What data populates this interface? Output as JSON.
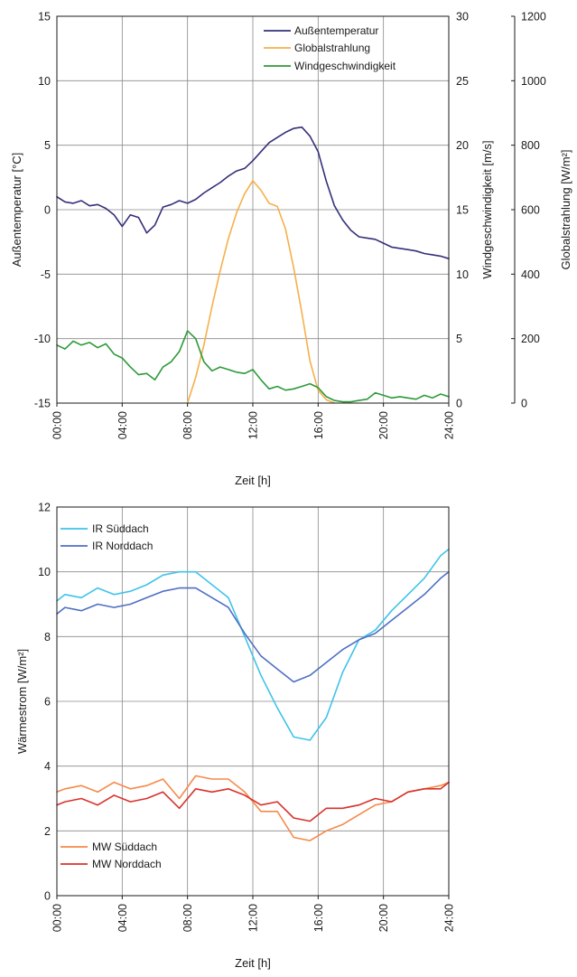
{
  "chart_data": [
    {
      "type": "line",
      "xlabel": "Zeit [h]",
      "x_ticks": [
        "00:00",
        "04:00",
        "08:00",
        "12:00",
        "16:00",
        "20:00",
        "24:00"
      ],
      "xlim": [
        0,
        24
      ],
      "grid": true,
      "legend_position": "top-right",
      "axes": {
        "left": {
          "label": "Außentemperatur [°C]",
          "lim": [
            -15,
            15
          ],
          "ticks": [
            "15",
            "10",
            "5",
            "0",
            "-5",
            "-10",
            "-15"
          ]
        },
        "right1": {
          "label": "Windgeschwindigkeit [m/s]",
          "lim": [
            0,
            30
          ],
          "ticks": [
            "30",
            "25",
            "20",
            "15",
            "10",
            "5",
            "0"
          ]
        },
        "right2": {
          "label": "Globalstrahlung [W/m²]",
          "lim": [
            0,
            1200
          ],
          "ticks": [
            "1200",
            "1000",
            "800",
            "600",
            "400",
            "200",
            "0"
          ]
        }
      },
      "series": [
        {
          "name": "Außentemperatur",
          "axis": "left",
          "color": "#33307a",
          "x": [
            0,
            0.5,
            1,
            1.5,
            2,
            2.5,
            3,
            3.5,
            4,
            4.5,
            5,
            5.5,
            6,
            6.5,
            7,
            7.5,
            8,
            8.5,
            9,
            9.5,
            10,
            10.5,
            11,
            11.5,
            12,
            12.5,
            13,
            13.5,
            14,
            14.5,
            15,
            15.5,
            16,
            16.5,
            17,
            17.5,
            18,
            18.5,
            19,
            19.5,
            20,
            20.5,
            21,
            21.5,
            22,
            22.5,
            23,
            23.5,
            24
          ],
          "y": [
            1,
            0.6,
            0.5,
            0.7,
            0.3,
            0.4,
            0.1,
            -0.4,
            -1.3,
            -0.4,
            -0.6,
            -1.8,
            -1.2,
            0.2,
            0.4,
            0.7,
            0.5,
            0.8,
            1.3,
            1.7,
            2.1,
            2.6,
            3.0,
            3.2,
            3.8,
            4.5,
            5.2,
            5.6,
            6.0,
            6.3,
            6.4,
            5.7,
            4.5,
            2.2,
            0.3,
            -0.8,
            -1.6,
            -2.1,
            -2.2,
            -2.3,
            -2.6,
            -2.9,
            -3.0,
            -3.1,
            -3.2,
            -3.4,
            -3.5,
            -3.6,
            -3.8
          ]
        },
        {
          "name": "Globalstrahlung",
          "axis": "right2",
          "color": "#f5b04a",
          "x": [
            8,
            8.5,
            9,
            9.5,
            10,
            10.5,
            11,
            11.5,
            12,
            12.5,
            13,
            13.5,
            14,
            14.5,
            15,
            15.5,
            16,
            16.5,
            17
          ],
          "y": [
            0,
            80,
            180,
            300,
            410,
            510,
            590,
            650,
            690,
            660,
            620,
            610,
            540,
            420,
            280,
            130,
            40,
            10,
            0
          ]
        },
        {
          "name": "Windgeschwindigkeit",
          "axis": "right1",
          "color": "#2e9a3a",
          "x": [
            0,
            0.5,
            1,
            1.5,
            2,
            2.5,
            3,
            3.5,
            4,
            4.5,
            5,
            5.5,
            6,
            6.5,
            7,
            7.5,
            8,
            8.5,
            9,
            9.5,
            10,
            10.5,
            11,
            11.5,
            12,
            12.5,
            13,
            13.5,
            14,
            14.5,
            15,
            15.5,
            16,
            16.5,
            17,
            17.5,
            18,
            18.5,
            19,
            19.5,
            20,
            20.5,
            21,
            21.5,
            22,
            22.5,
            23,
            23.5,
            24
          ],
          "y": [
            4.5,
            4.2,
            4.8,
            4.5,
            4.7,
            4.3,
            4.6,
            3.8,
            3.5,
            2.8,
            2.2,
            2.3,
            1.8,
            2.8,
            3.2,
            4.0,
            5.6,
            5.0,
            3.2,
            2.5,
            2.8,
            2.6,
            2.4,
            2.3,
            2.6,
            1.8,
            1.1,
            1.3,
            1.0,
            1.1,
            1.3,
            1.5,
            1.2,
            0.5,
            0.2,
            0.1,
            0.1,
            0.2,
            0.3,
            0.8,
            0.6,
            0.4,
            0.5,
            0.4,
            0.3,
            0.6,
            0.4,
            0.7,
            0.5
          ]
        }
      ]
    },
    {
      "type": "line",
      "xlabel": "Zeit [h]",
      "ylabel": "Wärmestrom [W/m²]",
      "x_ticks": [
        "00:00",
        "04:00",
        "08:00",
        "12:00",
        "16:00",
        "20:00",
        "24:00"
      ],
      "y_ticks": [
        "12",
        "10",
        "8",
        "6",
        "4",
        "2",
        "0"
      ],
      "xlim": [
        0,
        24
      ],
      "ylim": [
        0,
        12
      ],
      "grid": true,
      "legend_position": "top-left / bottom-left",
      "series": [
        {
          "name": "IR Süddach",
          "color": "#3fc3ea",
          "x": [
            0,
            0.5,
            1.5,
            2.5,
            3.5,
            4.5,
            5.5,
            6.5,
            7.5,
            8.5,
            9.5,
            10.5,
            11.5,
            12.5,
            13.5,
            14.5,
            15.5,
            16.5,
            17.5,
            18.5,
            19.5,
            20.5,
            21.5,
            22.5,
            23.5,
            24
          ],
          "y": [
            9.1,
            9.3,
            9.2,
            9.5,
            9.3,
            9.4,
            9.6,
            9.9,
            10.0,
            10.0,
            9.6,
            9.2,
            8.0,
            6.8,
            5.8,
            4.9,
            4.8,
            5.5,
            6.9,
            7.9,
            8.2,
            8.8,
            9.3,
            9.8,
            10.5,
            10.7
          ]
        },
        {
          "name": "IR Norddach",
          "color": "#4f6fc4",
          "x": [
            0,
            0.5,
            1.5,
            2.5,
            3.5,
            4.5,
            5.5,
            6.5,
            7.5,
            8.5,
            9.5,
            10.5,
            11.5,
            12.5,
            13.5,
            14.5,
            15.5,
            16.5,
            17.5,
            18.5,
            19.5,
            20.5,
            21.5,
            22.5,
            23.5,
            24
          ],
          "y": [
            8.7,
            8.9,
            8.8,
            9.0,
            8.9,
            9.0,
            9.2,
            9.4,
            9.5,
            9.5,
            9.2,
            8.9,
            8.1,
            7.4,
            7.0,
            6.6,
            6.8,
            7.2,
            7.6,
            7.9,
            8.1,
            8.5,
            8.9,
            9.3,
            9.8,
            10.0
          ]
        },
        {
          "name": "MW Süddach",
          "color": "#f58a4a",
          "x": [
            0,
            0.5,
            1.5,
            2.5,
            3.5,
            4.5,
            5.5,
            6.5,
            7.5,
            8.5,
            9.5,
            10.5,
            11.5,
            12.5,
            13.5,
            14.5,
            15.5,
            16.5,
            17.5,
            18.5,
            19.5,
            20.5,
            21.5,
            22.5,
            23.5,
            24
          ],
          "y": [
            3.2,
            3.3,
            3.4,
            3.2,
            3.5,
            3.3,
            3.4,
            3.6,
            3.0,
            3.7,
            3.6,
            3.6,
            3.2,
            2.6,
            2.6,
            1.8,
            1.7,
            2.0,
            2.2,
            2.5,
            2.8,
            2.9,
            3.2,
            3.3,
            3.4,
            3.5
          ]
        },
        {
          "name": "MW Norddach",
          "color": "#d9322b",
          "x": [
            0,
            0.5,
            1.5,
            2.5,
            3.5,
            4.5,
            5.5,
            6.5,
            7.5,
            8.5,
            9.5,
            10.5,
            11.5,
            12.5,
            13.5,
            14.5,
            15.5,
            16.5,
            17.5,
            18.5,
            19.5,
            20.5,
            21.5,
            22.5,
            23.5,
            24
          ],
          "y": [
            2.8,
            2.9,
            3.0,
            2.8,
            3.1,
            2.9,
            3.0,
            3.2,
            2.7,
            3.3,
            3.2,
            3.3,
            3.1,
            2.8,
            2.9,
            2.4,
            2.3,
            2.7,
            2.7,
            2.8,
            3.0,
            2.9,
            3.2,
            3.3,
            3.3,
            3.5
          ]
        }
      ]
    }
  ]
}
